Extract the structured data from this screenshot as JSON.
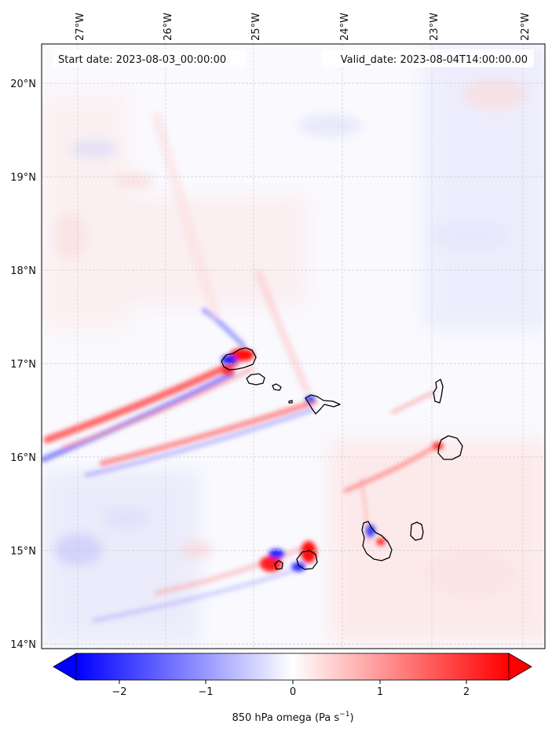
{
  "map": {
    "start_label": "Start date: 2023-08-03_00:00:00",
    "valid_label": "Valid_date: 2023-08-04T14:00:00.00",
    "lon_ticks": [
      "27°W",
      "26°W",
      "25°W",
      "24°W",
      "23°W",
      "22°W"
    ],
    "lat_ticks": [
      "20°N",
      "19°N",
      "18°N",
      "17°N",
      "16°N",
      "15°N",
      "14°N"
    ],
    "lon_range": [
      -27.4,
      -21.7
    ],
    "lat_range": [
      13.95,
      20.45
    ],
    "field": "850 hPa omega",
    "gridlines": true,
    "coastline_color": "#000000"
  },
  "colorbar": {
    "ticks": [
      "−2",
      "−1",
      "0",
      "1",
      "2"
    ],
    "tick_values": [
      -2,
      -1,
      0,
      1,
      2
    ],
    "range": [
      -2.5,
      2.5
    ],
    "extend": "both",
    "label_main": "850 hPa omega (Pa s",
    "label_sup": "−1",
    "label_end": ")",
    "colormap": "bwr",
    "low_color": "#0000ff",
    "mid_color": "#ffffff",
    "high_color": "#ff0000"
  }
}
